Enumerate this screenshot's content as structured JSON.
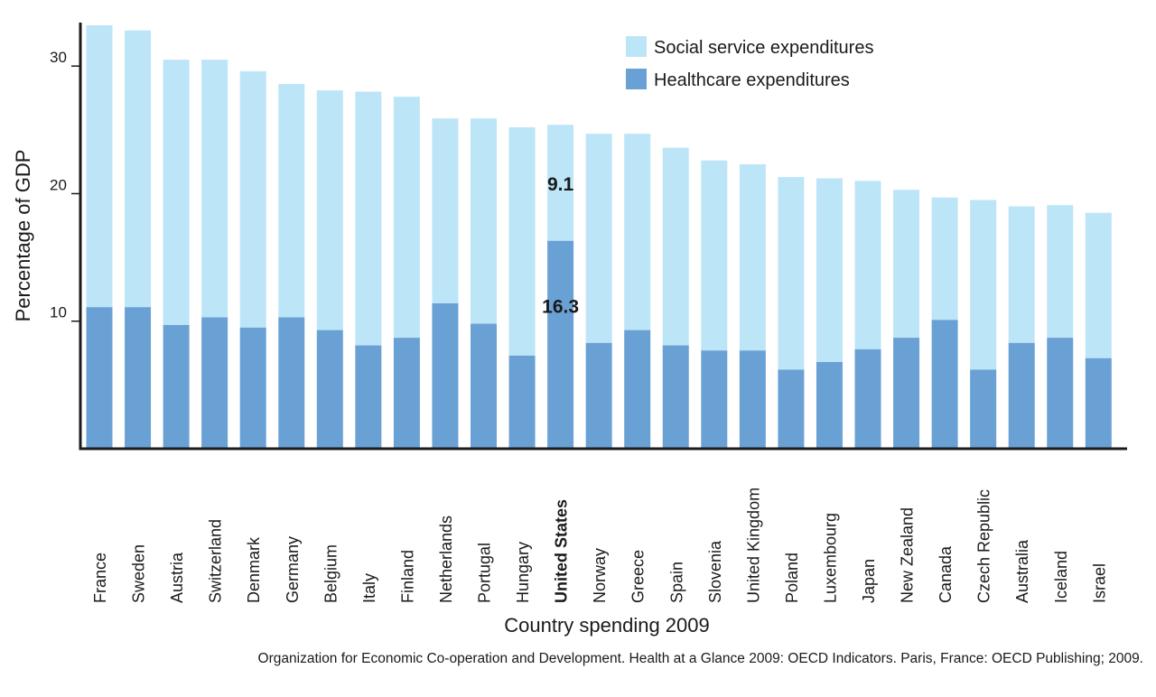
{
  "chart_data": {
    "type": "bar",
    "stacked": true,
    "categories": [
      "France",
      "Sweden",
      "Austria",
      "Switzerland",
      "Denmark",
      "Germany",
      "Belgium",
      "Italy",
      "Finland",
      "Netherlands",
      "Portugal",
      "Hungary",
      "United States",
      "Norway",
      "Greece",
      "Spain",
      "Slovenia",
      "United Kingdom",
      "Poland",
      "Luxembourg",
      "Japan",
      "New Zealand",
      "Canada",
      "Czech Republic",
      "Australia",
      "Iceland",
      "Israel"
    ],
    "highlight_category": "United States",
    "series": [
      {
        "name": "Healthcare expenditures",
        "color": "#6aa1d5",
        "values": [
          11.1,
          11.1,
          9.7,
          10.3,
          9.5,
          10.3,
          9.3,
          8.1,
          8.7,
          11.4,
          9.8,
          7.3,
          16.3,
          8.3,
          9.3,
          8.1,
          7.7,
          7.7,
          6.2,
          6.8,
          7.8,
          8.7,
          10.1,
          6.2,
          8.3,
          8.7,
          7.1
        ]
      },
      {
        "name": "Social service expenditures",
        "color": "#bde5f8",
        "values": [
          22.1,
          21.7,
          20.8,
          20.2,
          20.1,
          18.3,
          18.8,
          19.9,
          18.9,
          14.5,
          16.1,
          17.9,
          9.1,
          16.4,
          15.4,
          15.5,
          14.9,
          14.6,
          15.1,
          14.4,
          13.2,
          11.6,
          9.6,
          13.3,
          10.7,
          10.4,
          11.4
        ]
      }
    ],
    "ylabel": "Percentage of GDP",
    "xlabel": "Country spending 2009",
    "yticks": [
      10,
      20,
      30
    ],
    "ylim": [
      0,
      33.2
    ],
    "grid": false,
    "legend": "top-center",
    "annotations": [
      {
        "category": "United States",
        "series": "Social service expenditures",
        "text": "9.1"
      },
      {
        "category": "United States",
        "series": "Healthcare expenditures",
        "text": "16.3"
      }
    ]
  },
  "source": "Organization for Economic Co-operation and Development. Health at a Glance 2009: OECD Indicators. Paris, France: OECD Publishing; 2009."
}
